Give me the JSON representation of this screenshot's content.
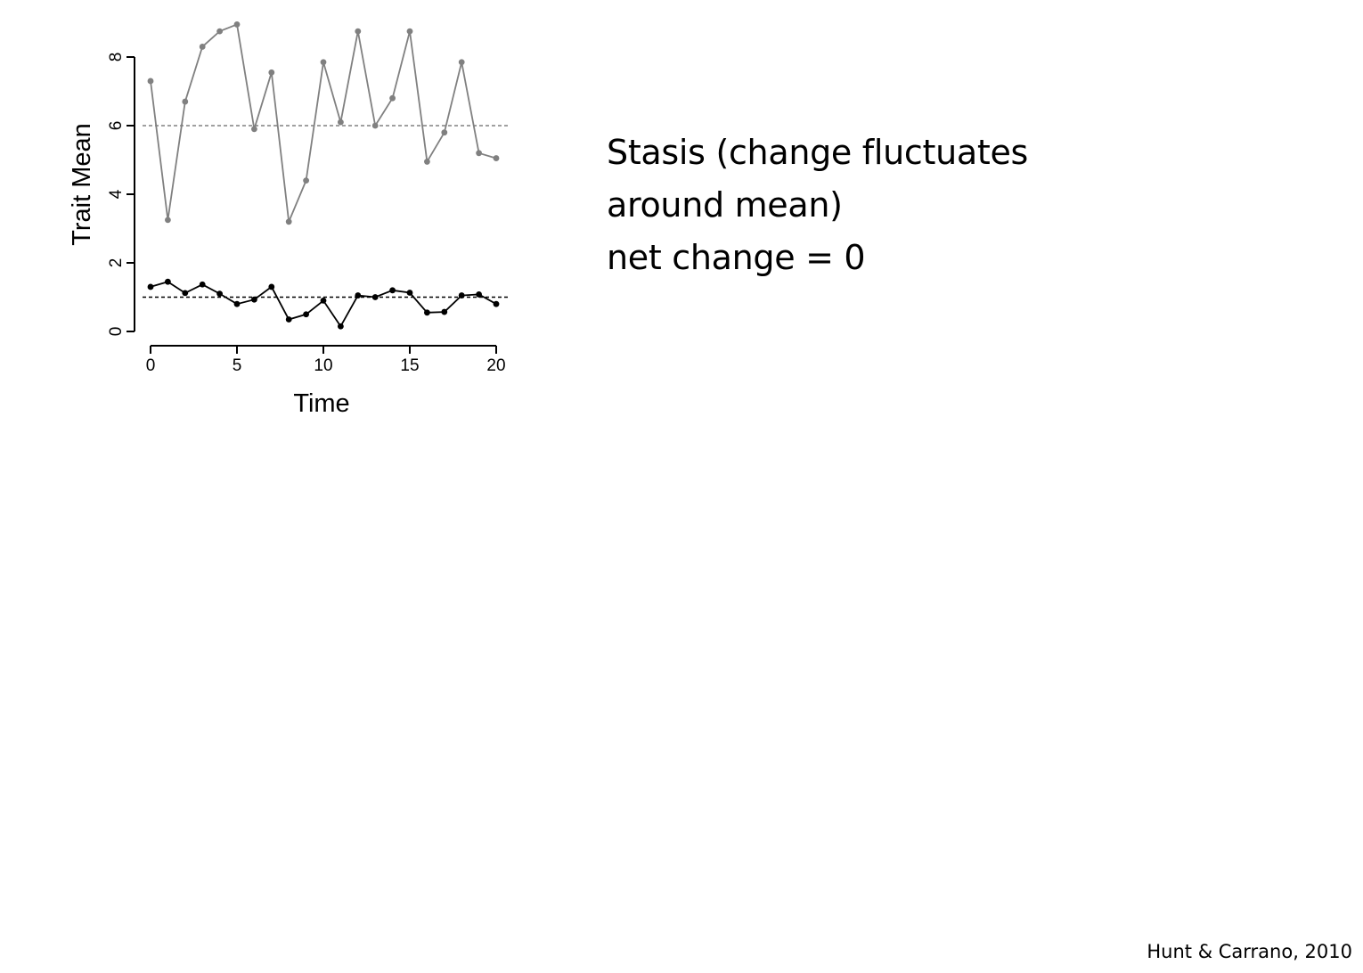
{
  "chart_data": {
    "type": "line",
    "xlabel": "Time",
    "ylabel": "Trait Mean",
    "xlim": [
      0,
      20
    ],
    "ylim": [
      0,
      8
    ],
    "xticks": [
      0,
      5,
      10,
      15,
      20
    ],
    "yticks": [
      0,
      2,
      4,
      6,
      8
    ],
    "x": [
      0,
      1,
      2,
      3,
      4,
      5,
      6,
      7,
      8,
      9,
      10,
      11,
      12,
      13,
      14,
      15,
      16,
      17,
      18,
      19,
      20
    ],
    "series": [
      {
        "color": "#808080",
        "values": [
          7.3,
          3.25,
          6.7,
          8.3,
          8.75,
          8.95,
          5.9,
          7.55,
          3.2,
          4.4,
          7.85,
          6.1,
          8.75,
          6.0,
          6.8,
          8.75,
          4.95,
          5.8,
          7.85,
          5.2,
          5.05
        ],
        "mean_line": 6.0
      },
      {
        "color": "#000000",
        "values": [
          1.3,
          1.45,
          1.12,
          1.37,
          1.1,
          0.8,
          0.93,
          1.3,
          0.35,
          0.5,
          0.9,
          0.15,
          1.05,
          1.0,
          1.2,
          1.13,
          0.55,
          0.57,
          1.05,
          1.08,
          0.8
        ],
        "mean_line": 1.0
      }
    ],
    "grid": false,
    "legend": "none"
  },
  "text": {
    "line1": "Stasis (change fluctuates",
    "line2": "around mean)",
    "line3": "net change = 0",
    "citation": "Hunt & Carrano, 2010"
  }
}
